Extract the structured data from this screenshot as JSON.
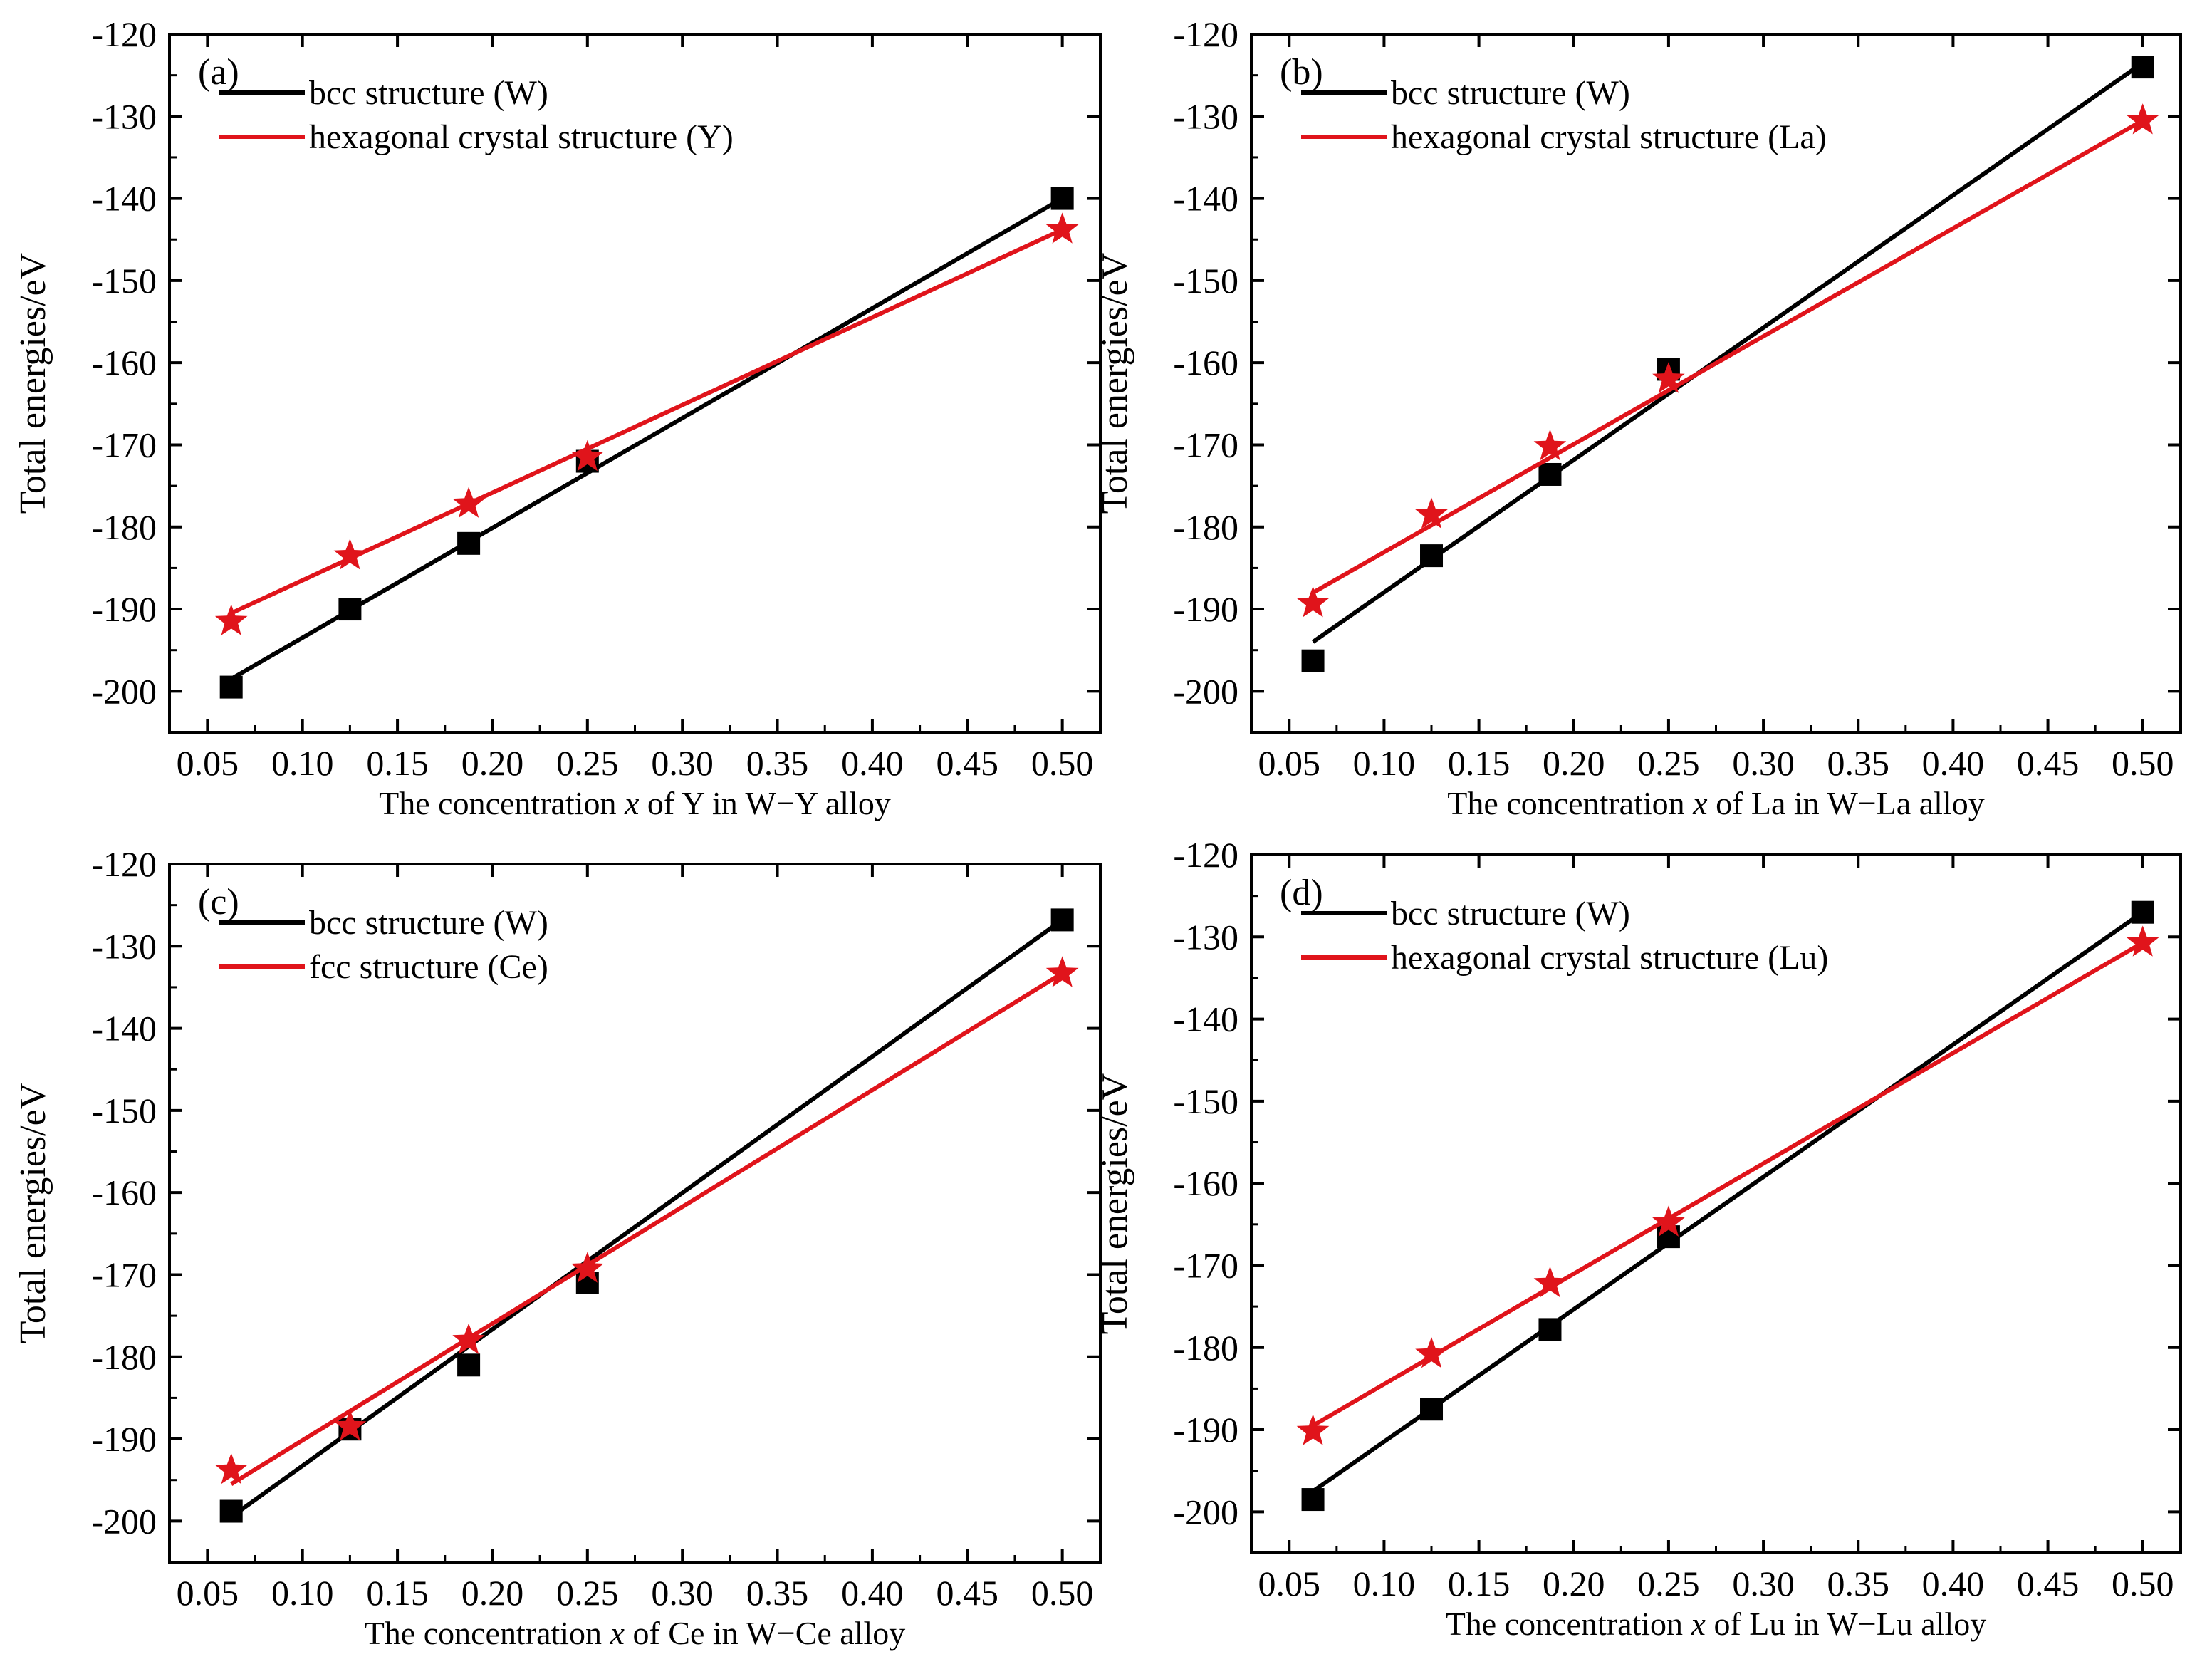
{
  "colors": {
    "bcc": "#000000",
    "hex": "#e0141b"
  },
  "chart_data": [
    {
      "type": "line",
      "panel_label": "(a)",
      "xlabel_prefix": "The concentration ",
      "xlabel_var": "x",
      "xlabel_suffix": " of Y in W−Y alloy",
      "ylabel": "Total energies/eV",
      "xlim": [
        0.03,
        0.52
      ],
      "ylim": [
        -205,
        -120
      ],
      "xticks": [
        "0.05",
        "0.10",
        "0.15",
        "0.20",
        "0.25",
        "0.30",
        "0.35",
        "0.40",
        "0.45",
        "0.50"
      ],
      "yticks": [
        "-120",
        "-130",
        "-140",
        "-150",
        "-160",
        "-170",
        "-180",
        "-190",
        "-200"
      ],
      "legend_position": "top-left",
      "series": [
        {
          "name": "bcc structure (W)",
          "marker": "square",
          "x": [
            0.0625,
            0.125,
            0.1875,
            0.25,
            0.5
          ],
          "y": [
            -199.5,
            -190.0,
            -182.0,
            -172.0,
            -140.0
          ],
          "fit": [
            -198.5,
            -140.0
          ]
        },
        {
          "name": "hexagonal crystal structure (Y)",
          "marker": "star",
          "x": [
            0.0625,
            0.125,
            0.1875,
            0.25,
            0.5
          ],
          "y": [
            -191.5,
            -183.5,
            -177.2,
            -171.5,
            -143.8
          ],
          "fit": [
            -190.5,
            -143.8
          ]
        }
      ]
    },
    {
      "type": "line",
      "panel_label": "(b)",
      "xlabel_prefix": "The concentration ",
      "xlabel_var": "x",
      "xlabel_suffix": " of La in W−La alloy",
      "ylabel": "Total energies/eV",
      "xlim": [
        0.03,
        0.52
      ],
      "ylim": [
        -205,
        -120
      ],
      "xticks": [
        "0.05",
        "0.10",
        "0.15",
        "0.20",
        "0.25",
        "0.30",
        "0.35",
        "0.40",
        "0.45",
        "0.50"
      ],
      "yticks": [
        "-120",
        "-130",
        "-140",
        "-150",
        "-160",
        "-170",
        "-180",
        "-190",
        "-200"
      ],
      "legend_position": "top-left",
      "series": [
        {
          "name": "bcc structure (W)",
          "marker": "square",
          "x": [
            0.0625,
            0.125,
            0.1875,
            0.25,
            0.5
          ],
          "y": [
            -196.3,
            -183.5,
            -173.6,
            -160.8,
            -124.0
          ],
          "fit": [
            -194.0,
            -123.5
          ]
        },
        {
          "name": "hexagonal crystal structure (La)",
          "marker": "star",
          "x": [
            0.0625,
            0.125,
            0.1875,
            0.25,
            0.5
          ],
          "y": [
            -189.3,
            -178.5,
            -170.2,
            -162.0,
            -130.5
          ],
          "fit": [
            -188.0,
            -130.5
          ]
        }
      ]
    },
    {
      "type": "line",
      "panel_label": "(c)",
      "xlabel_prefix": "The concentration ",
      "xlabel_var": "x",
      "xlabel_suffix": " of Ce in W−Ce alloy",
      "ylabel": "Total energies/eV",
      "xlim": [
        0.03,
        0.52
      ],
      "ylim": [
        -205,
        -120
      ],
      "xticks": [
        "0.05",
        "0.10",
        "0.15",
        "0.20",
        "0.25",
        "0.30",
        "0.35",
        "0.40",
        "0.45",
        "0.50"
      ],
      "yticks": [
        "-120",
        "-130",
        "-140",
        "-150",
        "-160",
        "-170",
        "-180",
        "-190",
        "-200"
      ],
      "legend_position": "top-left",
      "series": [
        {
          "name": "bcc structure (W)",
          "marker": "square",
          "x": [
            0.0625,
            0.125,
            0.1875,
            0.25,
            0.5
          ],
          "y": [
            -198.8,
            -188.8,
            -181.0,
            -171.0,
            -126.8
          ],
          "fit": [
            -199.5,
            -126.8
          ]
        },
        {
          "name": "fcc structure (Ce)",
          "marker": "star",
          "x": [
            0.0625,
            0.125,
            0.1875,
            0.25,
            0.5
          ],
          "y": [
            -193.8,
            -188.5,
            -178.0,
            -169.3,
            -133.3
          ],
          "fit": [
            -195.5,
            -133.3
          ]
        }
      ]
    },
    {
      "type": "line",
      "panel_label": "(d)",
      "xlabel_prefix": "The concentration ",
      "xlabel_var": "x",
      "xlabel_suffix": " of Lu in W−Lu alloy",
      "ylabel": "Total energies/eV",
      "xlim": [
        0.03,
        0.52
      ],
      "ylim": [
        -205,
        -120
      ],
      "xticks": [
        "0.05",
        "0.10",
        "0.15",
        "0.20",
        "0.25",
        "0.30",
        "0.35",
        "0.40",
        "0.45",
        "0.50"
      ],
      "yticks": [
        "-120",
        "-130",
        "-140",
        "-150",
        "-160",
        "-170",
        "-180",
        "-190",
        "-200"
      ],
      "legend_position": "top-left",
      "series": [
        {
          "name": "bcc structure (W)",
          "marker": "square",
          "x": [
            0.0625,
            0.125,
            0.1875,
            0.25,
            0.5
          ],
          "y": [
            -198.5,
            -187.5,
            -177.8,
            -166.5,
            -127.0
          ],
          "fit": [
            -197.5,
            -127.0
          ]
        },
        {
          "name": "hexagonal crystal structure (Lu)",
          "marker": "star",
          "x": [
            0.0625,
            0.125,
            0.1875,
            0.25,
            0.5
          ],
          "y": [
            -190.2,
            -180.8,
            -172.2,
            -164.8,
            -130.7
          ],
          "fit": [
            -189.5,
            -130.7
          ]
        }
      ]
    }
  ]
}
